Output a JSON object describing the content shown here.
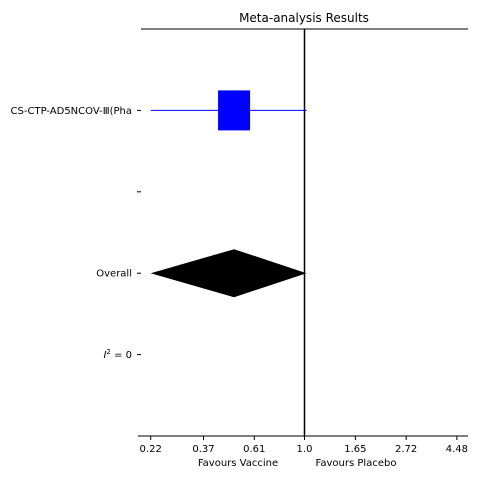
{
  "chart_data": {
    "type": "forest",
    "title": "Meta-analysis Results",
    "x_scale": "log",
    "xlim": [
      0.2,
      5.0
    ],
    "xticks": [
      "0.22",
      "0.37",
      "0.61",
      "1.0",
      "1.65",
      "2.72",
      "4.48"
    ],
    "xtick_values": [
      0.22,
      0.37,
      0.61,
      1.0,
      1.65,
      2.72,
      4.48
    ],
    "xlabel_left": "Favours Vaccine",
    "xlabel_right": "Favours Placebo",
    "reference_line": 1.0,
    "rows": [
      "CS-CTP-AD5NCOV-Ⅲ(Pha",
      "",
      "Overall",
      "I² = 0"
    ],
    "studies": [
      {
        "name": "CS-CTP-AD5NCOV-Ⅲ(Pha",
        "estimate": 0.5,
        "ci": [
          0.22,
          1.02
        ],
        "color": "#0000ff"
      }
    ],
    "overall": {
      "estimate": 0.5,
      "ci": [
        0.22,
        1.02
      ],
      "color": "#000000"
    },
    "heterogeneity": {
      "label": "I",
      "superscript": "2",
      "value": "= 0"
    }
  }
}
